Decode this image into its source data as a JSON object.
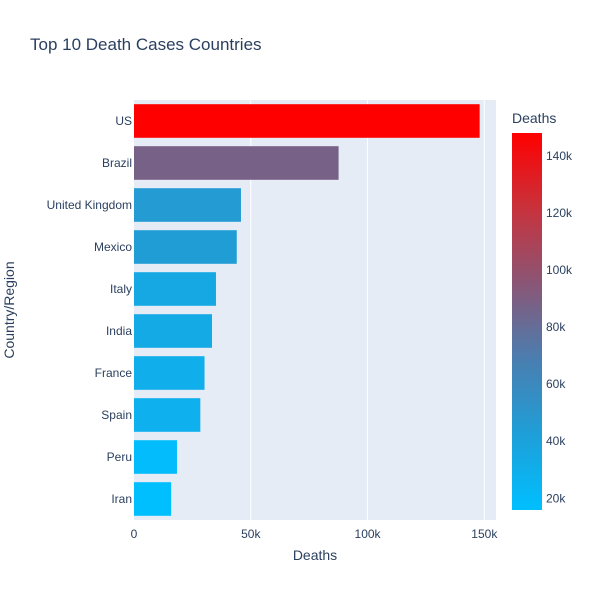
{
  "chart_data": {
    "type": "bar",
    "orientation": "horizontal",
    "title": "Top 10 Death Cases Countries",
    "xlabel": "Deaths",
    "ylabel": "Country/Region",
    "categories": [
      "US",
      "Brazil",
      "United Kingdom",
      "Mexico",
      "Italy",
      "India",
      "France",
      "Spain",
      "Peru",
      "Iran"
    ],
    "values": [
      148000,
      87600,
      45800,
      44000,
      35100,
      33400,
      30200,
      28400,
      18400,
      15900
    ],
    "xlim": [
      0,
      155000
    ],
    "xticks": [
      0,
      50000,
      100000,
      150000
    ],
    "xtick_labels": [
      "0",
      "50k",
      "100k",
      "150k"
    ],
    "grid": true,
    "colorbar": {
      "title": "Deaths",
      "range": [
        15900,
        148000
      ],
      "ticks": [
        20000,
        40000,
        60000,
        80000,
        100000,
        120000,
        140000
      ],
      "tick_labels": [
        "20k",
        "40k",
        "60k",
        "80k",
        "100k",
        "120k",
        "140k"
      ],
      "color_stops": [
        "#00bfff",
        "#1e9fd8",
        "#4a7eb0",
        "#8a5676",
        "#c8323c",
        "#ff0000"
      ]
    },
    "plot_background": "#e5ecf6"
  }
}
